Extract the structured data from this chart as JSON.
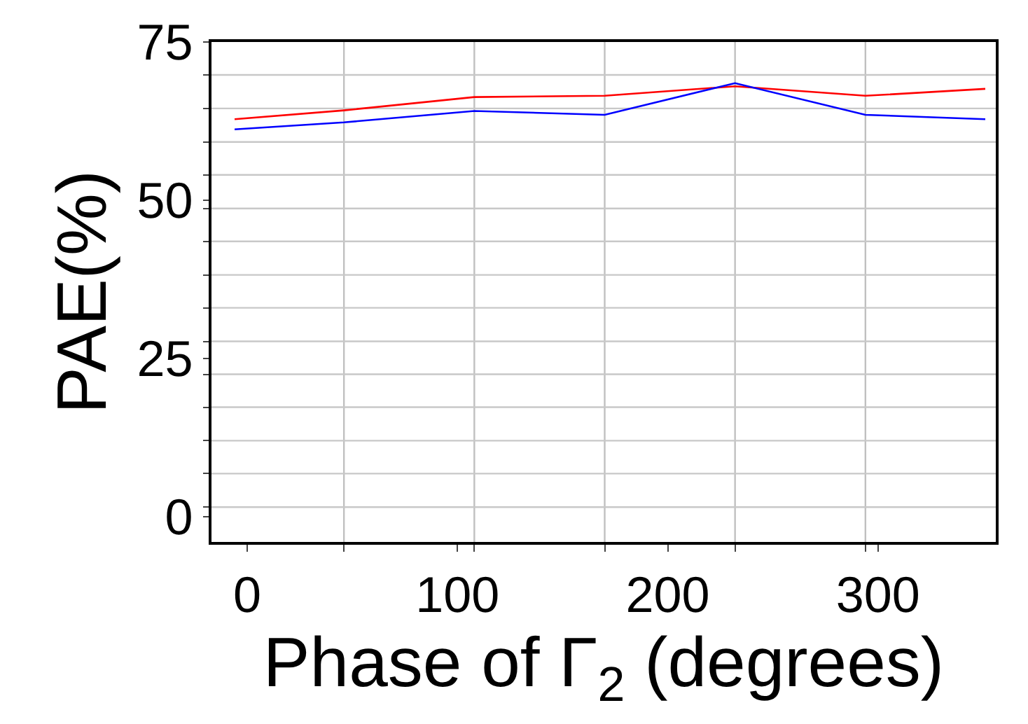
{
  "chart_data": {
    "type": "line",
    "xlabel": "Phase of Γ$_{2}$ (degrees)",
    "ylabel": "PAE(%)",
    "x": [
      -6,
      46,
      108,
      170,
      232,
      294,
      351
    ],
    "series": [
      {
        "color": "#ff0000",
        "values": [
          62.8,
          64.2,
          66.3,
          66.5,
          68.0,
          66.5,
          67.6
        ]
      },
      {
        "color": "#0000ff",
        "values": [
          61.2,
          62.3,
          64.1,
          63.5,
          68.5,
          63.5,
          62.8
        ]
      }
    ],
    "xlim": [
      -17,
      356
    ],
    "xticks": [
      0,
      100,
      200,
      300,
      {
        "value": 46,
        "label": null
      },
      {
        "value": 108,
        "label": null
      },
      {
        "value": 170,
        "label": null
      },
      {
        "value": 232,
        "label": null
      },
      {
        "value": 294,
        "label": null
      }
    ],
    "ylim": [
      -4,
      75
    ],
    "yticks": [
      0,
      25,
      50,
      75,
      {
        "value": 69.8,
        "label": null
      },
      {
        "value": 64.5,
        "label": null
      },
      {
        "value": 59.2,
        "label": null
      },
      {
        "value": 54,
        "label": null
      },
      {
        "value": 48.7,
        "label": null
      },
      {
        "value": 43.5,
        "label": null
      },
      {
        "value": 38.2,
        "label": null
      },
      {
        "value": 33,
        "label": null
      },
      {
        "value": 27.7,
        "label": null
      },
      {
        "value": 22.5,
        "label": null
      },
      {
        "value": 17.3,
        "label": null
      },
      {
        "value": 12,
        "label": null
      },
      {
        "value": 6.8,
        "label": null
      },
      {
        "value": 1.5,
        "label": null
      }
    ],
    "grid": true,
    "marker": "none",
    "line_style": "solid"
  }
}
